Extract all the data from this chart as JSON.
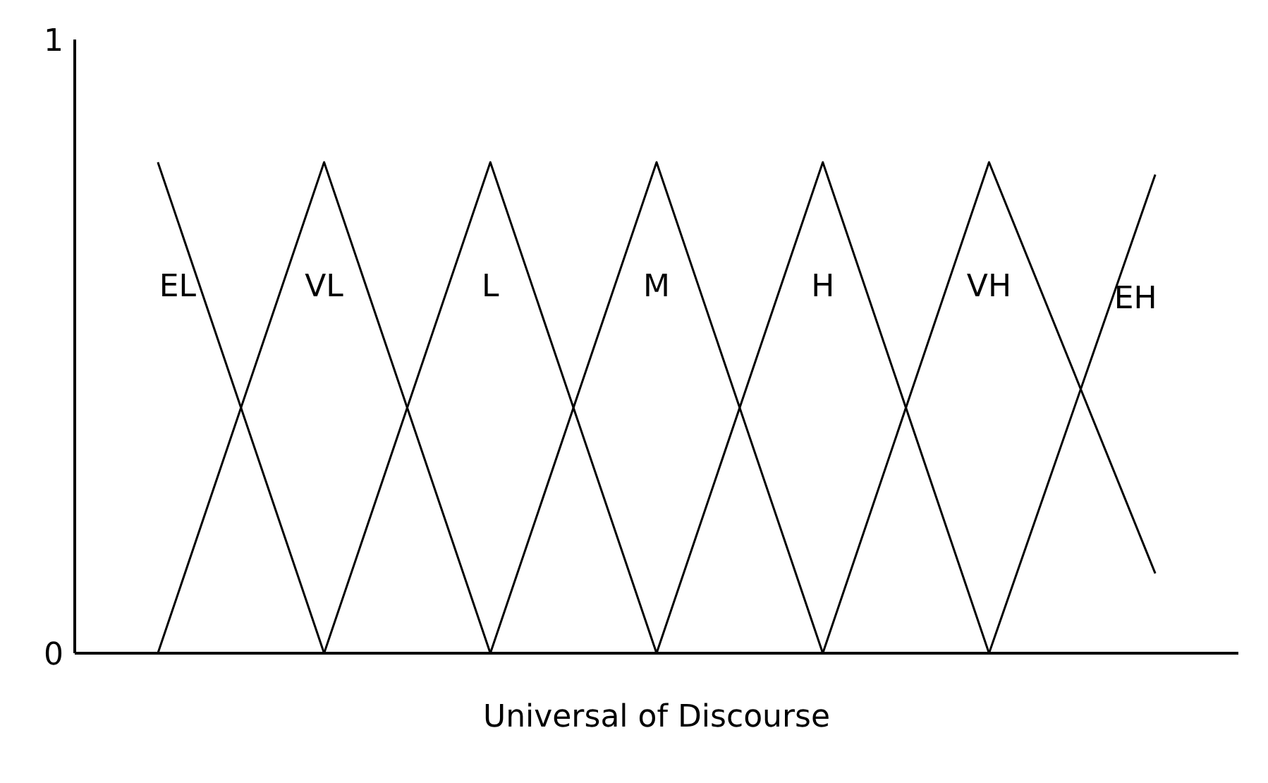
{
  "chart_data": {
    "type": "line",
    "xlabel": "Universal of Discourse",
    "categories": [
      null,
      null,
      null,
      null,
      null,
      null,
      null
    ],
    "ylim": [
      0,
      1
    ],
    "yticks": [
      0,
      1
    ],
    "tick_labels": "y",
    "marker": "none",
    "line_style": "solid",
    "series": [
      {
        "name": "EL",
        "color": "#000000",
        "values": [
          0.8,
          0,
          null,
          null,
          null,
          null,
          null
        ]
      },
      {
        "name": "VL",
        "color": "#000000",
        "values": [
          0,
          0.8,
          0,
          null,
          null,
          null,
          null
        ]
      },
      {
        "name": "L",
        "color": "#000000",
        "values": [
          null,
          0,
          0.8,
          0,
          null,
          null,
          null
        ]
      },
      {
        "name": "M",
        "color": "#000000",
        "values": [
          null,
          null,
          0,
          0.8,
          0,
          null,
          null
        ]
      },
      {
        "name": "H",
        "color": "#000000",
        "values": [
          null,
          null,
          null,
          0,
          0.8,
          0,
          null
        ]
      },
      {
        "name": "VH",
        "color": "#000000",
        "values": [
          null,
          null,
          null,
          null,
          0,
          0.8,
          0.13
        ]
      },
      {
        "name": "EH",
        "color": "#000000",
        "values": [
          null,
          null,
          null,
          null,
          null,
          0,
          0.78
        ]
      }
    ]
  }
}
